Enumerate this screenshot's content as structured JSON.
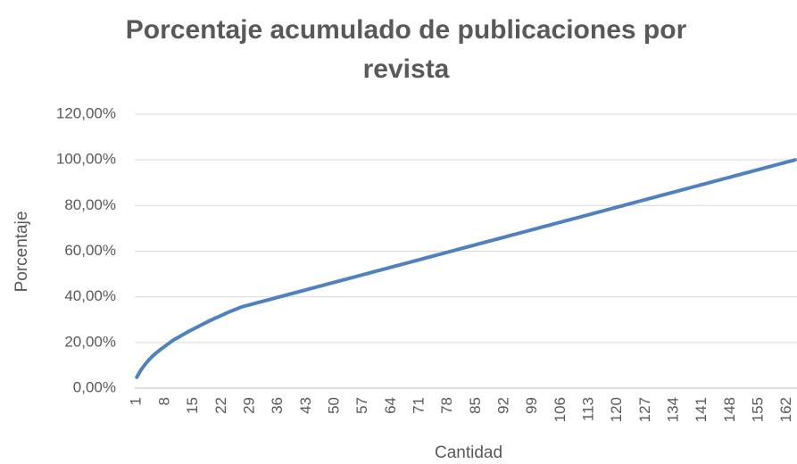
{
  "chart_data": {
    "type": "line",
    "title": "Porcentaje acumulado de publicaciones por revista",
    "x_label": "Cantidad",
    "y_label": "Porcentaje",
    "categories": [
      1,
      null,
      null,
      null,
      null,
      null,
      null,
      8,
      null,
      null,
      null,
      null,
      null,
      null,
      15,
      null,
      null,
      null,
      null,
      null,
      null,
      22,
      null,
      null,
      null,
      null,
      null,
      null,
      29,
      null,
      null,
      null,
      null,
      null,
      null,
      36,
      null,
      null,
      null,
      null,
      null,
      null,
      43,
      null,
      null,
      null,
      null,
      null,
      null,
      50,
      null,
      null,
      null,
      null,
      null,
      null,
      57,
      null,
      null,
      null,
      null,
      null,
      null,
      64,
      null,
      null,
      null,
      null,
      null,
      null,
      71,
      null,
      null,
      null,
      null,
      null,
      null,
      78,
      null,
      null,
      null,
      null,
      null,
      null,
      85,
      null,
      null,
      null,
      null,
      null,
      null,
      92,
      null,
      null,
      null,
      null,
      null,
      null,
      99,
      null,
      null,
      null,
      null,
      null,
      null,
      106,
      null,
      null,
      null,
      null,
      null,
      null,
      113,
      null,
      null,
      null,
      null,
      null,
      null,
      120,
      null,
      null,
      null,
      null,
      null,
      null,
      127,
      null,
      null,
      null,
      null,
      null,
      null,
      134,
      null,
      null,
      null,
      null,
      null,
      null,
      141,
      null,
      null,
      null,
      null,
      null,
      null,
      148,
      null,
      null,
      null,
      null,
      null,
      null,
      155,
      null,
      null,
      null,
      null,
      null,
      null,
      162,
      null,
      null
    ],
    "series": [
      {
        "name": "Porcentaje",
        "color": "#4f81bd",
        "values": [
          4.8,
          7.9,
          10.3,
          12.4,
          14.2,
          15.7,
          17.1,
          18.4,
          19.7,
          21.0,
          22.0,
          23.0,
          24.0,
          25.0,
          25.9,
          26.8,
          27.7,
          28.6,
          29.5,
          30.3,
          31.1,
          31.9,
          32.7,
          33.5,
          34.2,
          34.9,
          35.6,
          36.07,
          36.54,
          37.01,
          37.48,
          37.95,
          38.42,
          38.89,
          39.36,
          39.83,
          40.3,
          40.77,
          41.24,
          41.71,
          42.18,
          42.65,
          43.12,
          43.59,
          44.06,
          44.53,
          45,
          45.47,
          45.94,
          46.41,
          46.88,
          47.35,
          47.82,
          48.29,
          48.76,
          49.23,
          49.7,
          50.17,
          50.64,
          51.11,
          51.58,
          52.05,
          52.52,
          52.99,
          53.46,
          53.93,
          54.4,
          54.87,
          55.34,
          55.81,
          56.28,
          56.75,
          57.22,
          57.69,
          58.16,
          58.63,
          59.1,
          59.57,
          60.04,
          60.51,
          60.98,
          61.45,
          61.92,
          62.39,
          62.86,
          63.33,
          63.8,
          64.27,
          64.74,
          65.21,
          65.68,
          66.15,
          66.62,
          67.09,
          67.56,
          68.03,
          68.5,
          68.97,
          69.44,
          69.91,
          70.38,
          70.85,
          71.32,
          71.79,
          72.26,
          72.73,
          73.2,
          73.67,
          74.14,
          74.61,
          75.08,
          75.55,
          76.02,
          76.49,
          76.96,
          77.43,
          77.9,
          78.37,
          78.84,
          79.31,
          79.78,
          80.25,
          80.72,
          81.19,
          81.66,
          82.13,
          82.6,
          83.07,
          83.54,
          84.01,
          84.48,
          84.95,
          85.42,
          85.89,
          86.36,
          86.83,
          87.3,
          87.77,
          88.24,
          88.71,
          89.18,
          89.65,
          90.12,
          90.59,
          91.06,
          91.53,
          92,
          92.47,
          92.94,
          93.41,
          93.88,
          94.35,
          94.82,
          95.29,
          95.76,
          96.23,
          96.7,
          97.17,
          97.64,
          98.11,
          98.58,
          99.05,
          99.52,
          99.99
        ]
      }
    ],
    "ylim": [
      0,
      120
    ],
    "yticks": [
      {
        "value": 0,
        "label": "0,00%"
      },
      {
        "value": 20,
        "label": "20,00%"
      },
      {
        "value": 40,
        "label": "40,00%"
      },
      {
        "value": 60,
        "label": "60,00%"
      },
      {
        "value": 80,
        "label": "80,00%"
      },
      {
        "value": 100,
        "label": "100,00%"
      },
      {
        "value": 120,
        "label": "120,00%"
      }
    ],
    "grid": true,
    "legend": false
  }
}
